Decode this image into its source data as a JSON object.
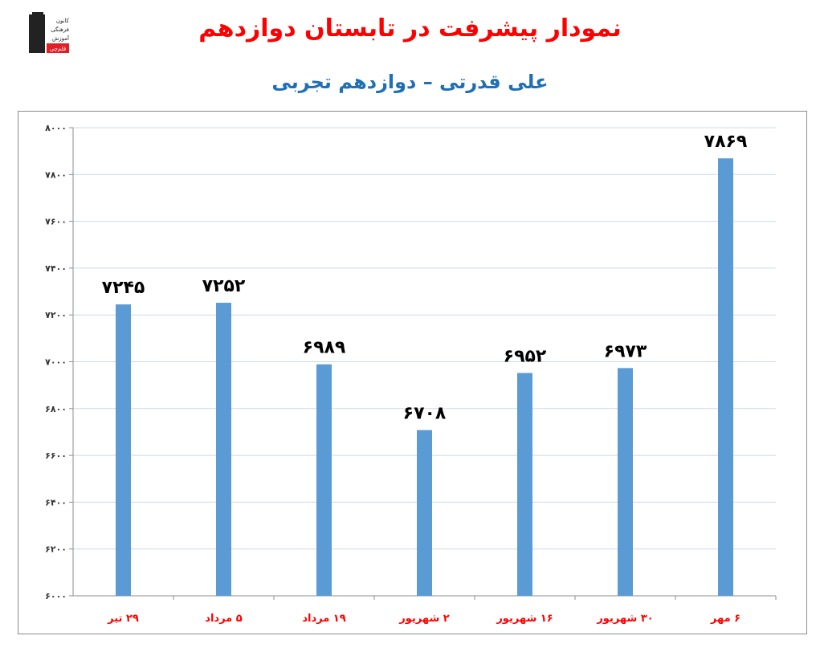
{
  "header": {
    "title": "نمودار پیشرفت در تابستان دوازدهم",
    "subtitle": "علی قدرتی – دوازدهم تجربی"
  },
  "logo": {
    "line1": "کانون",
    "line2": "فرهنگی",
    "line3": "آموزش",
    "badge": "قلم‌چی"
  },
  "colors": {
    "bar": "#5b9bd5",
    "grid": "#c9d9ea",
    "axis_label": "#ff0000",
    "title": "#ff0000",
    "subtitle": "#1f6fb6",
    "value_label": "#000000"
  },
  "chart_data": {
    "type": "bar",
    "categories": [
      "۲۹ تیر",
      "۵ مرداد",
      "۱۹ مرداد",
      "۲ شهریور",
      "۱۶ شهریور",
      "۳۰ شهریور",
      "۶ مهر"
    ],
    "values": [
      7245,
      7252,
      6989,
      6708,
      6952,
      6973,
      7869
    ],
    "value_labels": [
      "۷۲۴۵",
      "۷۲۵۲",
      "۶۹۸۹",
      "۶۷۰۸",
      "۶۹۵۲",
      "۶۹۷۳",
      "۷۸۶۹"
    ],
    "ylim": [
      6000,
      8000
    ],
    "yticks": [
      6000,
      6200,
      6400,
      6600,
      6800,
      7000,
      7200,
      7400,
      7600,
      7800,
      8000
    ],
    "ytick_labels": [
      "۶۰۰۰",
      "۶۲۰۰",
      "۶۴۰۰",
      "۶۶۰۰",
      "۶۸۰۰",
      "۷۰۰۰",
      "۷۲۰۰",
      "۷۴۰۰",
      "۷۶۰۰",
      "۷۸۰۰",
      "۸۰۰۰"
    ],
    "grid": true,
    "legend": "none",
    "title": "",
    "xlabel": "",
    "ylabel": ""
  }
}
